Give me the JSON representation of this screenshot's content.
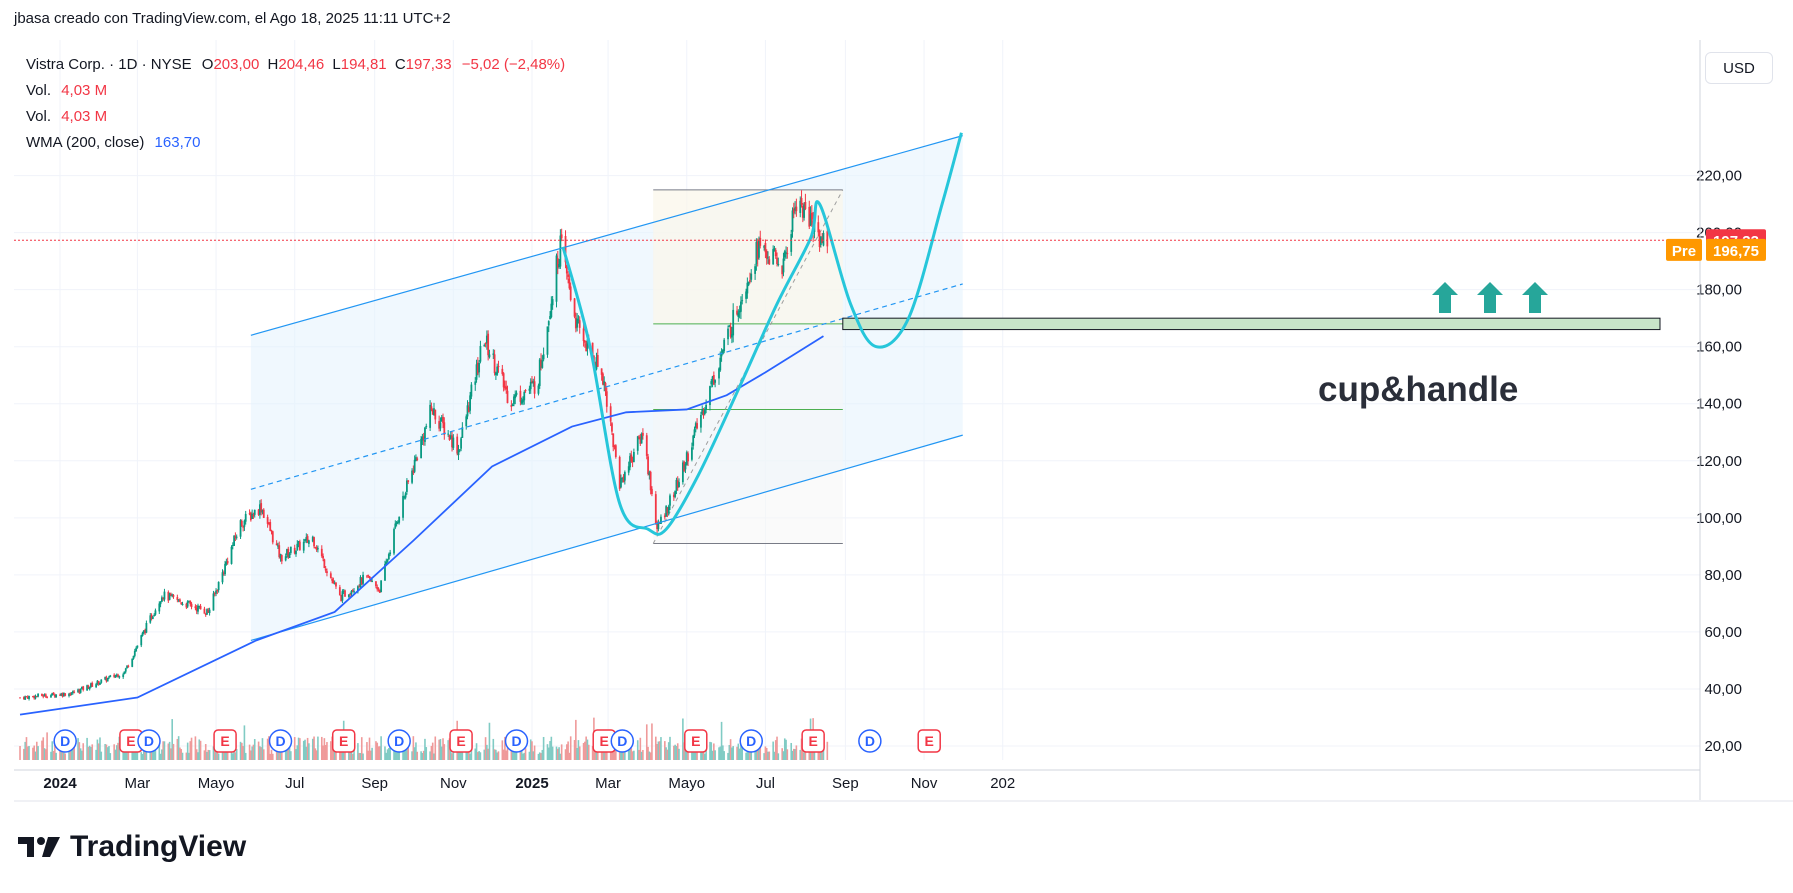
{
  "header": {
    "text": "jbasa creado con TradingView.com, el Ago 18, 2025 11:11 UTC+2"
  },
  "legend": {
    "symbol": "Vistra Corp. · 1D · NYSE",
    "open_label": "O",
    "open": "203,00",
    "high_label": "H",
    "high": "204,46",
    "low_label": "L",
    "low": "194,81",
    "close_label": "C",
    "close": "197,33",
    "change": "−5,02 (−2,48%)",
    "vol1_label": "Vol.",
    "vol1": "4,03 M",
    "vol2_label": "Vol.",
    "vol2": "4,03 M",
    "wma_label": "WMA (200, close)",
    "wma": "163,70"
  },
  "currency": "USD",
  "annotation": "cup&handle",
  "brand": "TradingView",
  "price_tags": {
    "last": "197,33",
    "pre_label": "Pre",
    "pre": "196,75"
  },
  "colors": {
    "up": "#089981",
    "down": "#f23645",
    "wma": "#2962ff",
    "channel": "#2196f3",
    "cup": "#26c6da",
    "arrow": "#26a69a"
  },
  "chart_data": {
    "type": "candlestick",
    "y_ticks": [
      "220,00",
      "200,00",
      "180,00",
      "160,00",
      "140,00",
      "120,00",
      "100,00",
      "80,00",
      "60,00",
      "40,00",
      "20,00"
    ],
    "x_ticks": [
      "2024",
      "Mar",
      "Mayo",
      "Jul",
      "Sep",
      "Nov",
      "2025",
      "Mar",
      "Mayo",
      "Jul",
      "Sep",
      "Nov",
      "202"
    ],
    "ylim": [
      14,
      230
    ],
    "anchors": [
      [
        "2023-12-01",
        37
      ],
      [
        "2024-01-10",
        38.5
      ],
      [
        "2024-02-20",
        46
      ],
      [
        "2024-03-20",
        73
      ],
      [
        "2024-04-25",
        67
      ],
      [
        "2024-05-20",
        98
      ],
      [
        "2024-06-05",
        104
      ],
      [
        "2024-06-20",
        86
      ],
      [
        "2024-07-15",
        93
      ],
      [
        "2024-08-05",
        72
      ],
      [
        "2024-08-25",
        79
      ],
      [
        "2024-09-05",
        75
      ],
      [
        "2024-09-20",
        102
      ],
      [
        "2024-10-15",
        138
      ],
      [
        "2024-11-05",
        124
      ],
      [
        "2024-11-25",
        163
      ],
      [
        "2024-12-15",
        141
      ],
      [
        "2025-01-05",
        147
      ],
      [
        "2025-01-23",
        196
      ],
      [
        "2025-02-05",
        167
      ],
      [
        "2025-02-25",
        150
      ],
      [
        "2025-03-10",
        112
      ],
      [
        "2025-03-28",
        130
      ],
      [
        "2025-04-08",
        96
      ],
      [
        "2025-04-25",
        113
      ],
      [
        "2025-05-15",
        140
      ],
      [
        "2025-06-05",
        168
      ],
      [
        "2025-06-25",
        195
      ],
      [
        "2025-07-15",
        188
      ],
      [
        "2025-07-25",
        212
      ],
      [
        "2025-08-15",
        197
      ]
    ],
    "wma_anchors": [
      [
        "2023-12-01",
        31
      ],
      [
        "2024-03-01",
        37
      ],
      [
        "2024-06-01",
        57
      ],
      [
        "2024-08-01",
        67
      ],
      [
        "2024-10-01",
        92
      ],
      [
        "2024-12-01",
        118
      ],
      [
        "2025-02-01",
        132
      ],
      [
        "2025-03-15",
        137
      ],
      [
        "2025-05-01",
        138
      ],
      [
        "2025-06-01",
        143
      ],
      [
        "2025-07-01",
        151
      ],
      [
        "2025-08-15",
        163.7
      ]
    ],
    "channel": {
      "upper": [
        [
          "2024-05-28",
          164
        ],
        [
          "2025-12-01",
          234
        ]
      ],
      "middle": [
        [
          "2024-05-28",
          110
        ],
        [
          "2025-12-01",
          182
        ]
      ],
      "lower": [
        [
          "2024-05-28",
          57
        ],
        [
          "2025-12-01",
          129
        ]
      ]
    },
    "range_box": {
      "x": [
        "2025-04-05",
        "2025-08-30"
      ],
      "y": [
        91,
        215
      ],
      "levels": [
        168,
        138
      ]
    },
    "zone": {
      "x": [
        "2025-08-30",
        "2025-12-01"
      ],
      "y": [
        166,
        170
      ]
    },
    "cup": [
      [
        "2025-01-25",
        195
      ],
      [
        "2025-02-15",
        160
      ],
      [
        "2025-03-10",
        105
      ],
      [
        "2025-04-01",
        96
      ],
      [
        "2025-04-15",
        96
      ],
      [
        "2025-05-10",
        115
      ],
      [
        "2025-06-10",
        145
      ],
      [
        "2025-07-10",
        175
      ],
      [
        "2025-08-05",
        198
      ],
      [
        "2025-08-12",
        210
      ],
      [
        "2025-09-05",
        175
      ],
      [
        "2025-09-25",
        160
      ],
      [
        "2025-10-20",
        170
      ],
      [
        "2025-11-15",
        210
      ],
      [
        "2025-11-30",
        235
      ]
    ],
    "markers": [
      {
        "label": "D",
        "date": "2024-01-05"
      },
      {
        "label": "E",
        "date": "2024-02-25"
      },
      {
        "label": "D",
        "date": "2024-03-10"
      },
      {
        "label": "E",
        "date": "2024-05-08"
      },
      {
        "label": "D",
        "date": "2024-06-20"
      },
      {
        "label": "E",
        "date": "2024-08-08"
      },
      {
        "label": "D",
        "date": "2024-09-20"
      },
      {
        "label": "E",
        "date": "2024-11-07"
      },
      {
        "label": "D",
        "date": "2024-12-20"
      },
      {
        "label": "E",
        "date": "2025-02-26"
      },
      {
        "label": "D",
        "date": "2025-03-12"
      },
      {
        "label": "E",
        "date": "2025-05-08"
      },
      {
        "label": "D",
        "date": "2025-06-20"
      },
      {
        "label": "E",
        "date": "2025-08-07"
      },
      {
        "label": "D",
        "date": "2025-09-20"
      },
      {
        "label": "E",
        "date": "2025-11-05"
      }
    ],
    "last_price": 197.33,
    "pre_price": 196.75
  }
}
